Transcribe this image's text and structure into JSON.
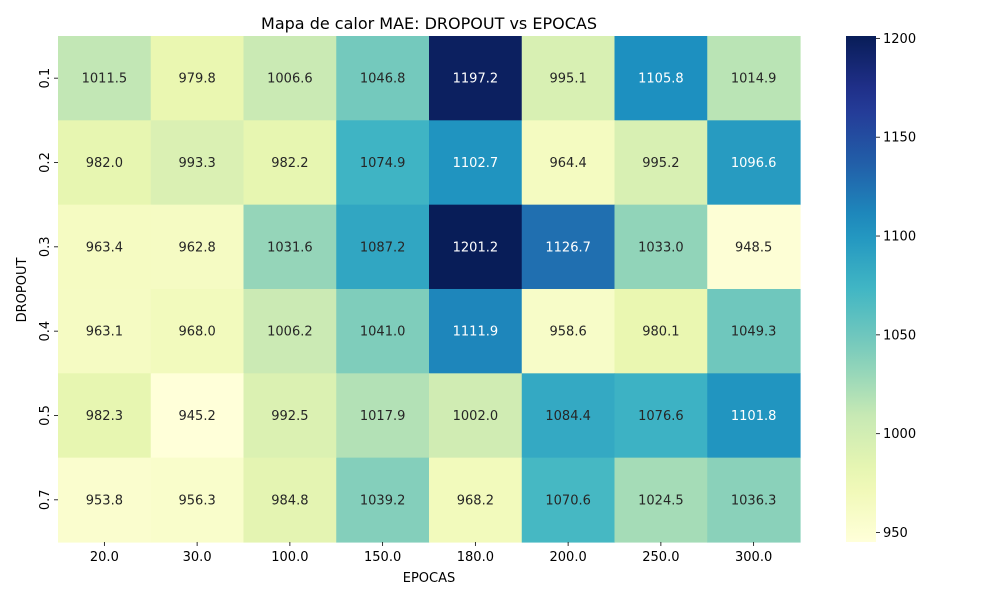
{
  "chart_data": {
    "type": "heatmap",
    "title": "Mapa de calor MAE: DROPOUT vs EPOCAS",
    "xlabel": "EPOCAS",
    "ylabel": "DROPOUT",
    "x_categories": [
      "20.0",
      "30.0",
      "100.0",
      "150.0",
      "180.0",
      "200.0",
      "250.0",
      "300.0"
    ],
    "y_categories": [
      "0.1",
      "0.2",
      "0.3",
      "0.4",
      "0.5",
      "0.7"
    ],
    "values": [
      [
        1011.5,
        979.8,
        1006.6,
        1046.8,
        1197.2,
        995.1,
        1105.8,
        1014.9
      ],
      [
        982.0,
        993.3,
        982.2,
        1074.9,
        1102.7,
        964.4,
        995.2,
        1096.6
      ],
      [
        963.4,
        962.8,
        1031.6,
        1087.2,
        1201.2,
        1126.7,
        1033.0,
        948.5
      ],
      [
        963.1,
        968.0,
        1006.2,
        1041.0,
        1111.9,
        958.6,
        980.1,
        1049.3
      ],
      [
        982.3,
        945.2,
        992.5,
        1017.9,
        1002.0,
        1084.4,
        1076.6,
        1101.8
      ],
      [
        953.8,
        956.3,
        984.8,
        1039.2,
        968.2,
        1070.6,
        1024.5,
        1036.3
      ]
    ],
    "value_format": "0.1f",
    "colormap": "YlGnBu",
    "vmin": 945.2,
    "vmax": 1201.2,
    "colorbar_ticks": [
      950,
      1000,
      1050,
      1100,
      1150,
      1200
    ],
    "grid": false,
    "legend": "colorbar-right"
  }
}
